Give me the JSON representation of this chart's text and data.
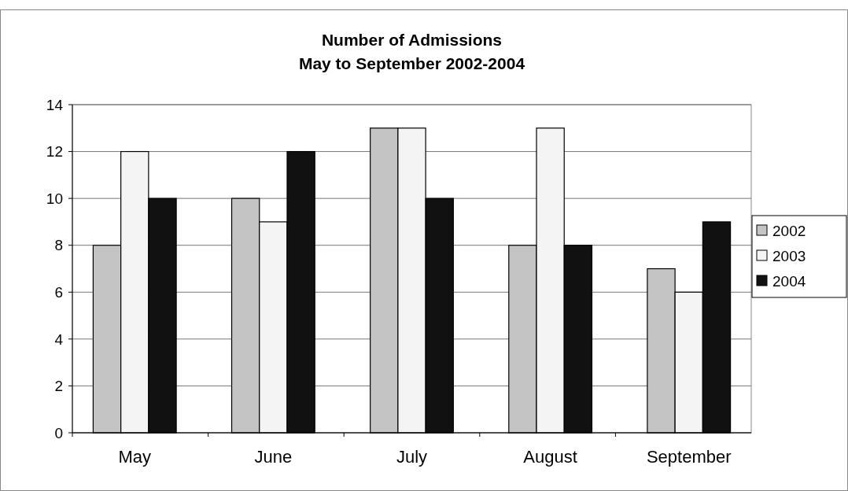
{
  "chart_data": {
    "type": "bar",
    "title": "Number of Admissions",
    "subtitle": "May to September 2002-2004",
    "categories": [
      "May",
      "June",
      "July",
      "August",
      "September"
    ],
    "series": [
      {
        "name": "2002",
        "color": "#c4c4c4",
        "values": [
          8,
          10,
          13,
          8,
          7
        ]
      },
      {
        "name": "2003",
        "color": "#f4f4f4",
        "values": [
          12,
          9,
          13,
          13,
          6
        ]
      },
      {
        "name": "2004",
        "color": "#111111",
        "values": [
          10,
          12,
          10,
          8,
          9
        ]
      }
    ],
    "ylim": [
      0,
      14
    ],
    "yticks": [
      0,
      2,
      4,
      6,
      8,
      10,
      12,
      14
    ],
    "grid": "y",
    "legend": "right"
  }
}
